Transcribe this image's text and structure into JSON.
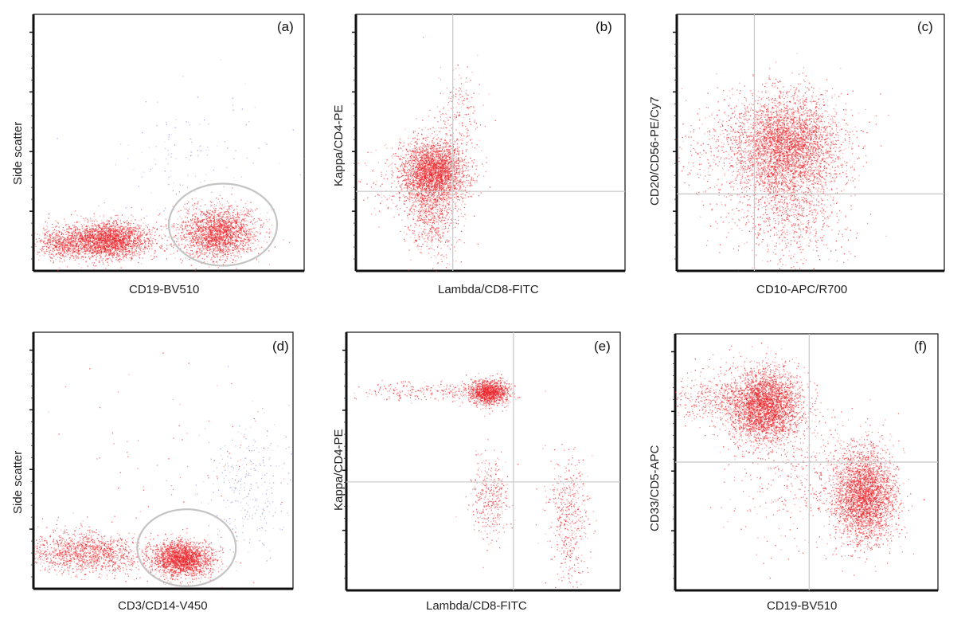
{
  "chart_data": [
    {
      "id": "a",
      "type": "scatter",
      "panel_label": "(a)",
      "xlabel": "CD19-BV510",
      "ylabel": "Side scatter",
      "xlim": [
        0,
        100
      ],
      "ylim": [
        0,
        100
      ],
      "grid": false,
      "quadrant_lines": null,
      "gate_ellipse": {
        "cx": 70,
        "cy": 18,
        "rx": 20,
        "ry": 16
      },
      "populations": [
        {
          "cx": 27,
          "cy": 12,
          "sx": 8,
          "sy": 3.5,
          "n": 2600,
          "color": "#ec2227"
        },
        {
          "cx": 68,
          "cy": 15,
          "sx": 7,
          "sy": 5,
          "n": 2200,
          "color": "#ec2227"
        },
        {
          "cx": 10,
          "cy": 11,
          "sx": 5,
          "sy": 3,
          "n": 500,
          "color": "#ec2227"
        },
        {
          "cx": 60,
          "cy": 40,
          "sx": 15,
          "sy": 14,
          "n": 160,
          "color": "#8f8fd8"
        }
      ]
    },
    {
      "id": "b",
      "type": "scatter",
      "panel_label": "(b)",
      "xlabel": "Lambda/CD8-FITC",
      "ylabel": "Kappa/CD4-PE",
      "xlim": [
        0,
        100
      ],
      "ylim": [
        0,
        100
      ],
      "grid": false,
      "quadrant_lines": {
        "x": 36,
        "y": 31
      },
      "gate_ellipse": null,
      "populations": [
        {
          "cx": 29,
          "cy": 39,
          "sx": 6,
          "sy": 6,
          "n": 2700,
          "color": "#ec2227"
        },
        {
          "cx": 28,
          "cy": 25,
          "sx": 5,
          "sy": 10,
          "n": 900,
          "color": "#ec2227"
        },
        {
          "cx": 38,
          "cy": 62,
          "sx": 5,
          "sy": 9,
          "n": 200,
          "color": "#ec2227"
        },
        {
          "cx": 20,
          "cy": 35,
          "sx": 10,
          "sy": 8,
          "n": 250,
          "color": "#ec2227"
        }
      ]
    },
    {
      "id": "c",
      "type": "scatter",
      "panel_label": "(c)",
      "xlabel": "CD10-APC/R700",
      "ylabel": "CD20/CD56-PE/Cy7",
      "xlim": [
        0,
        100
      ],
      "ylim": [
        0,
        100
      ],
      "grid": false,
      "quadrant_lines": {
        "x": 29,
        "y": 30
      },
      "gate_ellipse": null,
      "populations": [
        {
          "cx": 41,
          "cy": 49,
          "sx": 10,
          "sy": 10,
          "n": 4000,
          "color": "#ec2227"
        },
        {
          "cx": 42,
          "cy": 23,
          "sx": 10,
          "sy": 10,
          "n": 800,
          "color": "#ec2227"
        },
        {
          "cx": 20,
          "cy": 45,
          "sx": 12,
          "sy": 12,
          "n": 400,
          "color": "#ec2227"
        }
      ]
    },
    {
      "id": "d",
      "type": "scatter",
      "panel_label": "(d)",
      "xlabel": "CD3/CD14-V450",
      "ylabel": "Side scatter",
      "xlim": [
        0,
        100
      ],
      "ylim": [
        0,
        100
      ],
      "grid": false,
      "quadrant_lines": null,
      "gate_ellipse": {
        "cx": 59,
        "cy": 16,
        "rx": 19,
        "ry": 15
      },
      "populations": [
        {
          "cx": 57,
          "cy": 12,
          "sx": 6,
          "sy": 3.5,
          "n": 2200,
          "color": "#ec2227"
        },
        {
          "cx": 20,
          "cy": 14,
          "sx": 12,
          "sy": 4,
          "n": 1400,
          "color": "#ec2227"
        },
        {
          "cx": 83,
          "cy": 40,
          "sx": 8,
          "sy": 12,
          "n": 280,
          "color": "#8f8fd8"
        },
        {
          "cx": 60,
          "cy": 45,
          "sx": 25,
          "sy": 25,
          "n": 120,
          "color": "#ec2227"
        }
      ]
    },
    {
      "id": "e",
      "type": "scatter",
      "panel_label": "(e)",
      "xlabel": "Lambda/CD8-FITC",
      "ylabel": "Kappa/CD4-PE",
      "xlim": [
        0,
        100
      ],
      "ylim": [
        0,
        100
      ],
      "grid": false,
      "quadrant_lines": {
        "x": 61,
        "y": 42
      },
      "gate_ellipse": null,
      "populations": [
        {
          "cx": 52,
          "cy": 77,
          "sx": 3.5,
          "sy": 2.5,
          "n": 1300,
          "color": "#ec2227"
        },
        {
          "cx": 30,
          "cy": 77,
          "sx": 14,
          "sy": 2,
          "n": 280,
          "color": "#ec2227"
        },
        {
          "cx": 52,
          "cy": 36,
          "sx": 3.5,
          "sy": 8,
          "n": 350,
          "color": "#ec2227"
        },
        {
          "cx": 81,
          "cy": 28,
          "sx": 3.5,
          "sy": 12,
          "n": 500,
          "color": "#ec2227"
        }
      ]
    },
    {
      "id": "f",
      "type": "scatter",
      "panel_label": "(f)",
      "xlabel": "CD19-BV510",
      "ylabel": "CD33/CD5-APC",
      "xlim": [
        0,
        100
      ],
      "ylim": [
        0,
        100
      ],
      "grid": false,
      "quadrant_lines": {
        "x": 51,
        "y": 50
      },
      "gate_ellipse": null,
      "populations": [
        {
          "cx": 34,
          "cy": 72,
          "sx": 7,
          "sy": 7,
          "n": 3500,
          "color": "#ec2227"
        },
        {
          "cx": 72,
          "cy": 37,
          "sx": 6,
          "sy": 9,
          "n": 3200,
          "color": "#ec2227"
        },
        {
          "cx": 15,
          "cy": 75,
          "sx": 10,
          "sy": 5,
          "n": 400,
          "color": "#ec2227"
        },
        {
          "cx": 50,
          "cy": 45,
          "sx": 14,
          "sy": 14,
          "n": 500,
          "color": "#ec2227"
        }
      ]
    }
  ]
}
